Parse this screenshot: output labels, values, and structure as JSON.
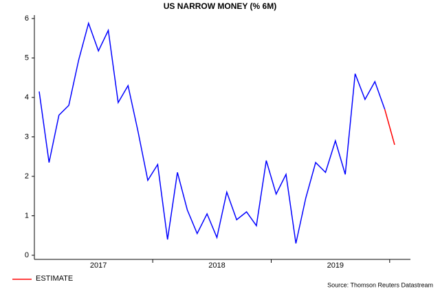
{
  "chart_data": {
    "type": "line",
    "title": "US NARROW MONEY (% 6M)",
    "categories": [
      null,
      null,
      null,
      null,
      null,
      null,
      "2017",
      null,
      null,
      null,
      null,
      null,
      null,
      null,
      null,
      null,
      null,
      null,
      "2018",
      null,
      null,
      null,
      null,
      null,
      null,
      null,
      null,
      null,
      null,
      null,
      "2019",
      null,
      null,
      null,
      null,
      null,
      null
    ],
    "series": [
      {
        "color": "#0000ff",
        "values": [
          4.15,
          2.35,
          3.55,
          3.8,
          4.95,
          5.88,
          5.18,
          5.7,
          3.87,
          4.3,
          3.15,
          1.9,
          2.3,
          0.4,
          2.1,
          1.15,
          0.55,
          1.05,
          0.45,
          1.6,
          0.9,
          1.1,
          0.75,
          2.4,
          1.55,
          2.05,
          0.3,
          1.45,
          2.35,
          2.1,
          2.9,
          2.05,
          4.6,
          3.95,
          4.4,
          3.7,
          null
        ]
      },
      {
        "name": "ESTIMATE",
        "color": "#ff0000",
        "values": [
          null,
          null,
          null,
          null,
          null,
          null,
          null,
          null,
          null,
          null,
          null,
          null,
          null,
          null,
          null,
          null,
          null,
          null,
          null,
          null,
          null,
          null,
          null,
          null,
          null,
          null,
          null,
          null,
          null,
          null,
          null,
          null,
          null,
          null,
          null,
          3.7,
          2.8
        ]
      }
    ],
    "ylim": [
      0,
      6
    ],
    "yticks": [
      0,
      1,
      2,
      3,
      4,
      5,
      6
    ],
    "source": "Source: Thomson Reuters Datastream"
  }
}
